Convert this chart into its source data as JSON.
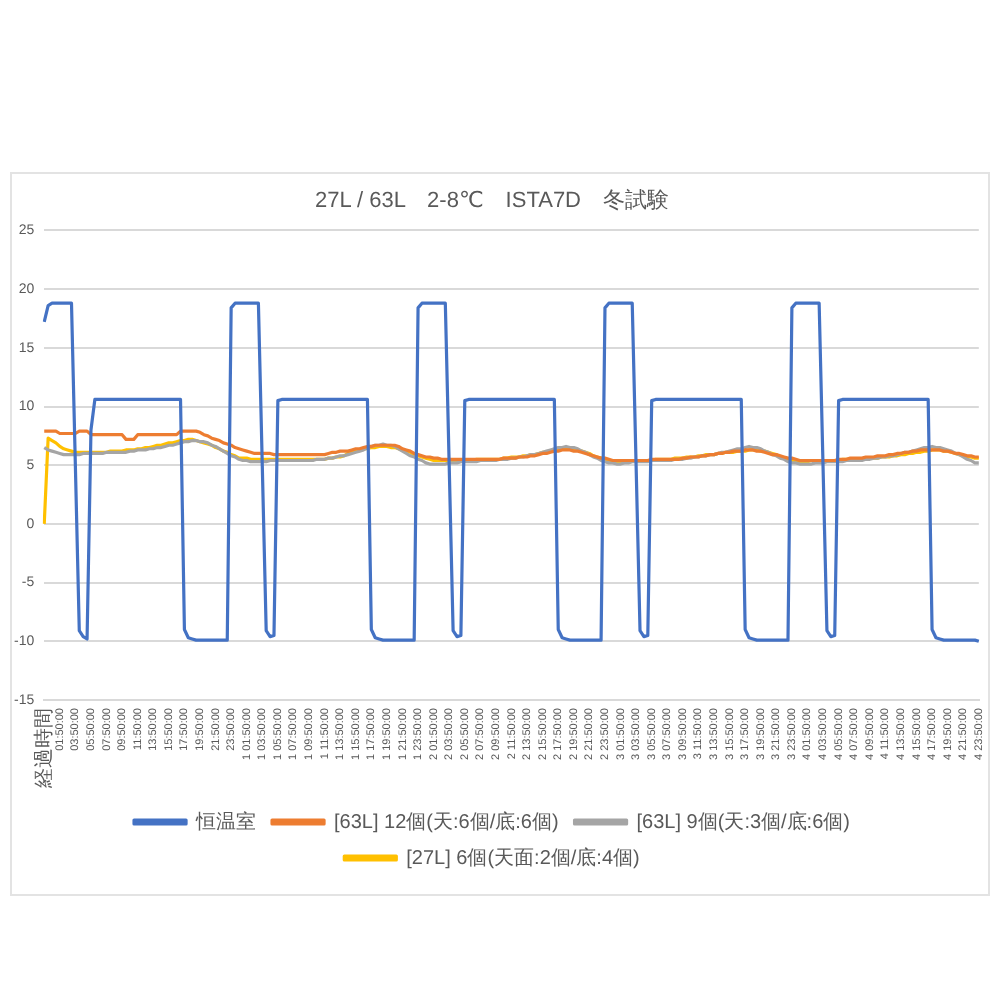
{
  "chart_data": {
    "type": "line",
    "title": "27L / 63L　2-8℃　ISTA7D　冬試験",
    "categories": [
      "経過時間",
      null,
      null,
      null,
      "01:50:00",
      null,
      null,
      null,
      "03:50:00",
      null,
      null,
      null,
      "05:50:00",
      null,
      null,
      null,
      "07:50:00",
      null,
      null,
      null,
      "09:50:00",
      null,
      null,
      null,
      "11:50:00",
      null,
      null,
      null,
      "13:50:00",
      null,
      null,
      null,
      "15:50:00",
      null,
      null,
      null,
      "17:50:00",
      null,
      null,
      null,
      "19:50:00",
      null,
      null,
      null,
      "21:50:00",
      null,
      null,
      null,
      "23:50:00",
      null,
      null,
      null,
      "1 01:50:00",
      null,
      null,
      null,
      "1 03:50:00",
      null,
      null,
      null,
      "1 05:50:00",
      null,
      null,
      null,
      "1 07:50:00",
      null,
      null,
      null,
      "1 09:50:00",
      null,
      null,
      null,
      "1 11:50:00",
      null,
      null,
      null,
      "1 13:50:00",
      null,
      null,
      null,
      "1 15:50:00",
      null,
      null,
      null,
      "1 17:50:00",
      null,
      null,
      null,
      "1 19:50:00",
      null,
      null,
      null,
      "1 21:50:00",
      null,
      null,
      null,
      "1 23:50:00",
      null,
      null,
      null,
      "2 01:50:00",
      null,
      null,
      null,
      "2 03:50:00",
      null,
      null,
      null,
      "2 05:50:00",
      null,
      null,
      null,
      "2 07:50:00",
      null,
      null,
      null,
      "2 09:50:00",
      null,
      null,
      null,
      "2 11:50:00",
      null,
      null,
      null,
      "2 13:50:00",
      null,
      null,
      null,
      "2 15:50:00",
      null,
      null,
      null,
      "2 17:50:00",
      null,
      null,
      null,
      "2 19:50:00",
      null,
      null,
      null,
      "2 21:50:00",
      null,
      null,
      null,
      "2 23:50:00",
      null,
      null,
      null,
      "3 01:50:00",
      null,
      null,
      null,
      "3 03:50:00",
      null,
      null,
      null,
      "3 05:50:00",
      null,
      null,
      null,
      "3 07:50:00",
      null,
      null,
      null,
      "3 09:50:00",
      null,
      null,
      null,
      "3 11:50:00",
      null,
      null,
      null,
      "3 13:50:00",
      null,
      null,
      null,
      "3 15:50:00",
      null,
      null,
      null,
      "3 17:50:00",
      null,
      null,
      null,
      "3 19:50:00",
      null,
      null,
      null,
      "3 21:50:00",
      null,
      null,
      null,
      "3 23:50:00",
      null,
      null,
      null,
      "4 01:50:00",
      null,
      null,
      null,
      "4 03:50:00",
      null,
      null,
      null,
      "4 05:50:00",
      null,
      null,
      null,
      "4 07:50:00",
      null,
      null,
      null,
      "4 09:50:00",
      null,
      null,
      null,
      "4 11:50:00",
      null,
      null,
      null,
      "4 13:50:00",
      null,
      null,
      null,
      "4 15:50:00",
      null,
      null,
      null,
      "4 17:50:00",
      null,
      null,
      null,
      "4 19:50:00",
      null,
      null,
      null,
      "4 21:50:00",
      null,
      null,
      null,
      "4 23:50:00"
    ],
    "ylim": [
      -15,
      25
    ],
    "yticks": [
      -15,
      -10,
      -5,
      0,
      5,
      10,
      15,
      20,
      25
    ],
    "grid": "y",
    "legend": "bottom",
    "marker": "none",
    "series": [
      {
        "name": "恒温室",
        "color": "#4472c4",
        "values": [
          17.2,
          18.6,
          18.8,
          18.8,
          18.8,
          18.8,
          18.8,
          18.8,
          4.9,
          -9.1,
          -9.6,
          -9.8,
          8.0,
          10.6,
          10.6,
          10.6,
          10.6,
          10.6,
          10.6,
          10.6,
          10.6,
          10.6,
          10.6,
          10.6,
          10.6,
          10.6,
          10.6,
          10.6,
          10.6,
          10.6,
          10.6,
          10.6,
          10.6,
          10.6,
          10.6,
          10.6,
          -9.0,
          -9.7,
          -9.8,
          -9.9,
          -9.9,
          -9.9,
          -9.9,
          -9.9,
          -9.9,
          -9.9,
          -9.9,
          -9.9,
          18.4,
          18.8,
          18.8,
          18.8,
          18.8,
          18.8,
          18.8,
          18.8,
          4.9,
          -9.1,
          -9.6,
          -9.5,
          10.5,
          10.6,
          10.6,
          10.6,
          10.6,
          10.6,
          10.6,
          10.6,
          10.6,
          10.6,
          10.6,
          10.6,
          10.6,
          10.6,
          10.6,
          10.6,
          10.6,
          10.6,
          10.6,
          10.6,
          10.6,
          10.6,
          10.6,
          10.6,
          -9.0,
          -9.7,
          -9.8,
          -9.9,
          -9.9,
          -9.9,
          -9.9,
          -9.9,
          -9.9,
          -9.9,
          -9.9,
          -9.9,
          18.4,
          18.8,
          18.8,
          18.8,
          18.8,
          18.8,
          18.8,
          18.8,
          4.9,
          -9.1,
          -9.6,
          -9.5,
          10.5,
          10.6,
          10.6,
          10.6,
          10.6,
          10.6,
          10.6,
          10.6,
          10.6,
          10.6,
          10.6,
          10.6,
          10.6,
          10.6,
          10.6,
          10.6,
          10.6,
          10.6,
          10.6,
          10.6,
          10.6,
          10.6,
          10.6,
          10.6,
          -9.0,
          -9.7,
          -9.8,
          -9.9,
          -9.9,
          -9.9,
          -9.9,
          -9.9,
          -9.9,
          -9.9,
          -9.9,
          -9.9,
          18.4,
          18.8,
          18.8,
          18.8,
          18.8,
          18.8,
          18.8,
          18.8,
          4.9,
          -9.1,
          -9.6,
          -9.5,
          10.5,
          10.6,
          10.6,
          10.6,
          10.6,
          10.6,
          10.6,
          10.6,
          10.6,
          10.6,
          10.6,
          10.6,
          10.6,
          10.6,
          10.6,
          10.6,
          10.6,
          10.6,
          10.6,
          10.6,
          10.6,
          10.6,
          10.6,
          10.6,
          -9.0,
          -9.7,
          -9.8,
          -9.9,
          -9.9,
          -9.9,
          -9.9,
          -9.9,
          -9.9,
          -9.9,
          -9.9,
          -9.9,
          18.4,
          18.8,
          18.8,
          18.8,
          18.8,
          18.8,
          18.8,
          18.8,
          4.9,
          -9.1,
          -9.6,
          -9.5,
          10.5,
          10.6,
          10.6,
          10.6,
          10.6,
          10.6,
          10.6,
          10.6,
          10.6,
          10.6,
          10.6,
          10.6,
          10.6,
          10.6,
          10.6,
          10.6,
          10.6,
          10.6,
          10.6,
          10.6,
          10.6,
          10.6,
          10.6,
          10.6,
          -9.0,
          -9.7,
          -9.8,
          -9.9,
          -9.9,
          -9.9,
          -9.9,
          -9.9,
          -9.9,
          -9.9,
          -9.9,
          -9.9,
          -10.0
        ]
      },
      {
        "name": "[63L] 12個(天:6個/底:6個)",
        "color": "#ed7d31",
        "values": [
          7.9,
          7.9,
          7.9,
          7.9,
          7.7,
          7.7,
          7.7,
          7.7,
          7.7,
          7.9,
          7.9,
          7.9,
          7.6,
          7.6,
          7.6,
          7.6,
          7.6,
          7.6,
          7.6,
          7.6,
          7.6,
          7.2,
          7.2,
          7.2,
          7.6,
          7.6,
          7.6,
          7.6,
          7.6,
          7.6,
          7.6,
          7.6,
          7.6,
          7.6,
          7.6,
          7.9,
          7.9,
          7.9,
          7.9,
          7.9,
          7.8,
          7.6,
          7.5,
          7.3,
          7.2,
          7.1,
          6.9,
          6.8,
          6.7,
          6.5,
          6.4,
          6.3,
          6.2,
          6.1,
          6.0,
          6.0,
          6.0,
          6.0,
          6.0,
          5.9,
          5.9,
          5.9,
          5.9,
          5.9,
          5.9,
          5.9,
          5.9,
          5.9,
          5.9,
          5.9,
          5.9,
          5.9,
          5.9,
          6.0,
          6.1,
          6.1,
          6.2,
          6.2,
          6.2,
          6.3,
          6.4,
          6.4,
          6.5,
          6.6,
          6.6,
          6.7,
          6.7,
          6.7,
          6.7,
          6.7,
          6.7,
          6.6,
          6.4,
          6.3,
          6.2,
          6.0,
          5.9,
          5.8,
          5.7,
          5.7,
          5.6,
          5.6,
          5.5,
          5.5,
          5.5,
          5.5,
          5.5,
          5.5,
          5.5,
          5.5,
          5.5,
          5.5,
          5.5,
          5.5,
          5.5,
          5.5,
          5.5,
          5.5,
          5.6,
          5.6,
          5.6,
          5.6,
          5.7,
          5.7,
          5.7,
          5.8,
          5.8,
          5.9,
          6.0,
          6.0,
          6.1,
          6.2,
          6.2,
          6.3,
          6.3,
          6.3,
          6.2,
          6.2,
          6.1,
          6.0,
          5.9,
          5.8,
          5.7,
          5.6,
          5.6,
          5.5,
          5.4,
          5.4,
          5.4,
          5.4,
          5.4,
          5.4,
          5.4,
          5.4,
          5.4,
          5.4,
          5.5,
          5.5,
          5.5,
          5.5,
          5.5,
          5.5,
          5.5,
          5.5,
          5.6,
          5.6,
          5.7,
          5.7,
          5.7,
          5.8,
          5.8,
          5.9,
          5.9,
          6.0,
          6.0,
          6.1,
          6.1,
          6.2,
          6.2,
          6.2,
          6.3,
          6.3,
          6.3,
          6.2,
          6.2,
          6.1,
          6.0,
          5.9,
          5.9,
          5.8,
          5.7,
          5.6,
          5.6,
          5.5,
          5.4,
          5.4,
          5.4,
          5.4,
          5.4,
          5.4,
          5.4,
          5.4,
          5.4,
          5.4,
          5.5,
          5.5,
          5.5,
          5.6,
          5.6,
          5.6,
          5.6,
          5.7,
          5.7,
          5.7,
          5.8,
          5.8,
          5.8,
          5.9,
          5.9,
          6.0,
          6.0,
          6.1,
          6.1,
          6.2,
          6.2,
          6.3,
          6.3,
          6.3,
          6.3,
          6.3,
          6.3,
          6.2,
          6.2,
          6.1,
          6.0,
          6.0,
          5.9,
          5.8,
          5.8,
          5.7,
          5.7
        ]
      },
      {
        "name": "[63L] 9個(天:3個/底:6個)",
        "color": "#a5a5a5",
        "values": [
          6.5,
          6.3,
          6.2,
          6.1,
          6.0,
          5.9,
          5.9,
          5.9,
          5.9,
          5.9,
          6.0,
          6.0,
          6.0,
          6.0,
          6.0,
          6.0,
          6.1,
          6.1,
          6.1,
          6.1,
          6.1,
          6.1,
          6.2,
          6.2,
          6.3,
          6.3,
          6.3,
          6.4,
          6.4,
          6.5,
          6.5,
          6.6,
          6.7,
          6.7,
          6.8,
          6.9,
          7.0,
          7.0,
          7.1,
          7.1,
          7.0,
          7.0,
          6.9,
          6.7,
          6.6,
          6.4,
          6.2,
          6.0,
          5.8,
          5.7,
          5.5,
          5.4,
          5.4,
          5.3,
          5.3,
          5.3,
          5.3,
          5.3,
          5.4,
          5.4,
          5.4,
          5.4,
          5.4,
          5.4,
          5.4,
          5.4,
          5.4,
          5.4,
          5.4,
          5.4,
          5.5,
          5.5,
          5.5,
          5.6,
          5.6,
          5.7,
          5.8,
          5.8,
          5.9,
          6.0,
          6.1,
          6.2,
          6.3,
          6.5,
          6.6,
          6.7,
          6.7,
          6.8,
          6.7,
          6.7,
          6.6,
          6.4,
          6.2,
          6.0,
          5.8,
          5.7,
          5.5,
          5.4,
          5.2,
          5.1,
          5.1,
          5.1,
          5.1,
          5.1,
          5.2,
          5.2,
          5.2,
          5.3,
          5.3,
          5.3,
          5.3,
          5.3,
          5.4,
          5.4,
          5.4,
          5.4,
          5.4,
          5.5,
          5.5,
          5.5,
          5.6,
          5.6,
          5.7,
          5.7,
          5.8,
          5.9,
          5.9,
          6.0,
          6.1,
          6.2,
          6.3,
          6.4,
          6.5,
          6.5,
          6.6,
          6.5,
          6.5,
          6.4,
          6.2,
          6.1,
          5.9,
          5.7,
          5.6,
          5.4,
          5.3,
          5.2,
          5.2,
          5.1,
          5.1,
          5.2,
          5.2,
          5.3,
          5.3,
          5.3,
          5.3,
          5.3,
          5.4,
          5.4,
          5.4,
          5.4,
          5.4,
          5.4,
          5.5,
          5.5,
          5.5,
          5.6,
          5.6,
          5.7,
          5.7,
          5.8,
          5.8,
          5.9,
          5.9,
          6.0,
          6.1,
          6.1,
          6.2,
          6.3,
          6.4,
          6.4,
          6.5,
          6.6,
          6.5,
          6.5,
          6.4,
          6.2,
          6.1,
          5.9,
          5.8,
          5.6,
          5.5,
          5.3,
          5.2,
          5.2,
          5.1,
          5.1,
          5.1,
          5.1,
          5.2,
          5.2,
          5.2,
          5.3,
          5.3,
          5.3,
          5.3,
          5.3,
          5.4,
          5.4,
          5.4,
          5.4,
          5.4,
          5.5,
          5.5,
          5.6,
          5.6,
          5.7,
          5.7,
          5.8,
          5.8,
          5.9,
          6.0,
          6.1,
          6.1,
          6.2,
          6.3,
          6.4,
          6.5,
          6.5,
          6.6,
          6.5,
          6.5,
          6.4,
          6.3,
          6.2,
          6.0,
          5.9,
          5.7,
          5.5,
          5.4,
          5.2,
          5.2
        ]
      },
      {
        "name": "[27L] 6個(天面:2個/底:4個)",
        "color": "#ffc000",
        "values": [
          0,
          7.3,
          7.1,
          6.9,
          6.6,
          6.4,
          6.3,
          6.2,
          6.1,
          6.1,
          6.1,
          6.1,
          6.1,
          6.1,
          6.1,
          6.1,
          6.1,
          6.2,
          6.2,
          6.2,
          6.2,
          6.3,
          6.3,
          6.3,
          6.4,
          6.4,
          6.5,
          6.5,
          6.6,
          6.7,
          6.7,
          6.8,
          6.9,
          6.9,
          7.0,
          7.1,
          7.1,
          7.2,
          7.2,
          7.1,
          7.0,
          6.9,
          6.8,
          6.7,
          6.5,
          6.4,
          6.2,
          6.1,
          5.9,
          5.8,
          5.6,
          5.6,
          5.6,
          5.5,
          5.5,
          5.5,
          5.5,
          5.5,
          5.5,
          5.5,
          5.5,
          5.5,
          5.5,
          5.5,
          5.5,
          5.5,
          5.5,
          5.5,
          5.5,
          5.5,
          5.5,
          5.5,
          5.5,
          5.6,
          5.6,
          5.7,
          5.7,
          5.8,
          6.0,
          6.1,
          6.2,
          6.3,
          6.4,
          6.4,
          6.5,
          6.5,
          6.6,
          6.6,
          6.6,
          6.5,
          6.5,
          6.4,
          6.3,
          6.2,
          6.1,
          5.9,
          5.8,
          5.7,
          5.6,
          5.5,
          5.4,
          5.4,
          5.4,
          5.4,
          5.4,
          5.4,
          5.4,
          5.4,
          5.4,
          5.4,
          5.4,
          5.5,
          5.5,
          5.5,
          5.5,
          5.5,
          5.5,
          5.5,
          5.6,
          5.6,
          5.7,
          5.7,
          5.7,
          5.8,
          5.8,
          5.9,
          5.9,
          6.0,
          6.1,
          6.1,
          6.2,
          6.3,
          6.3,
          6.4,
          6.4,
          6.4,
          6.3,
          6.3,
          6.2,
          6.1,
          6.0,
          5.8,
          5.7,
          5.6,
          5.5,
          5.4,
          5.3,
          5.3,
          5.3,
          5.3,
          5.4,
          5.4,
          5.4,
          5.4,
          5.4,
          5.4,
          5.4,
          5.5,
          5.5,
          5.5,
          5.5,
          5.5,
          5.6,
          5.6,
          5.6,
          5.7,
          5.7,
          5.7,
          5.8,
          5.8,
          5.9,
          5.9,
          5.9,
          6.0,
          6.0,
          6.1,
          6.1,
          6.1,
          6.2,
          6.2,
          6.2,
          6.3,
          6.3,
          6.3,
          6.2,
          6.2,
          6.1,
          6.0,
          5.9,
          5.7,
          5.6,
          5.5,
          5.4,
          5.4,
          5.3,
          5.3,
          5.3,
          5.4,
          5.4,
          5.4,
          5.4,
          5.4,
          5.4,
          5.4,
          5.4,
          5.5,
          5.5,
          5.5,
          5.5,
          5.5,
          5.5,
          5.5,
          5.6,
          5.6,
          5.6,
          5.7,
          5.7,
          5.7,
          5.8,
          5.8,
          5.9,
          5.9,
          6.0,
          6.0,
          6.1,
          6.1,
          6.2,
          6.2,
          6.3,
          6.3,
          6.3,
          6.2,
          6.2,
          6.1,
          6.0,
          5.9,
          5.8,
          5.7,
          5.7,
          5.6,
          5.6
        ]
      }
    ]
  }
}
